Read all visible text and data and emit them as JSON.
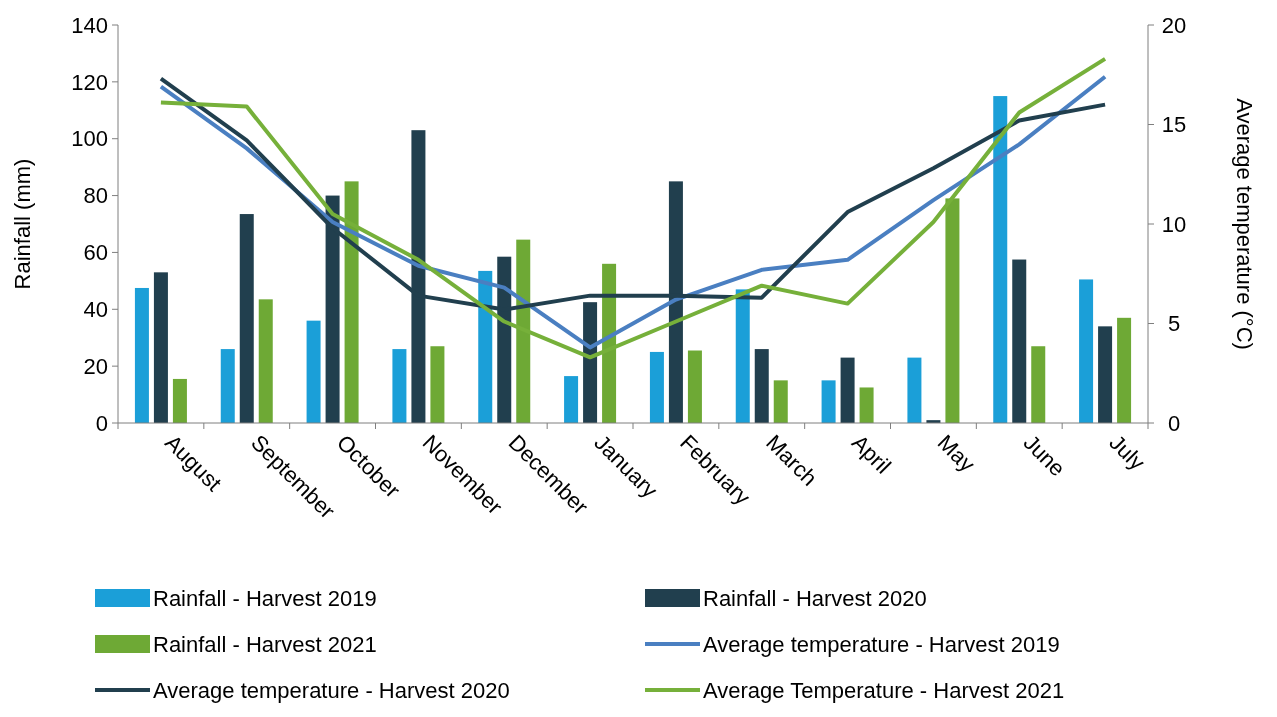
{
  "chart_data": {
    "type": "bar",
    "categories": [
      "August",
      "September",
      "October",
      "November",
      "December",
      "January",
      "February",
      "March",
      "April",
      "May",
      "June",
      "July"
    ],
    "ylabel": "Rainfall (mm)",
    "y2label": "Average temperature (°C)",
    "ylim": [
      0,
      140
    ],
    "yticks": [
      0,
      20,
      40,
      60,
      80,
      100,
      120,
      140
    ],
    "y2lim": [
      0,
      20
    ],
    "y2ticks": [
      0,
      5,
      10,
      15,
      20
    ],
    "grid": false,
    "legend": "bottom",
    "series": [
      {
        "name": "Rainfall - Harvest 2019",
        "color": "#1b9fd8",
        "values": [
          47.5,
          26,
          36,
          26,
          53.5,
          16.5,
          25,
          47,
          15,
          23,
          115,
          50.5
        ]
      },
      {
        "name": "Rainfall - Harvest 2020",
        "color": "#213f4e",
        "values": [
          53,
          73.5,
          80,
          103,
          58.5,
          42.5,
          85,
          26,
          23,
          1,
          57.5,
          34
        ]
      },
      {
        "name": "Rainfall - Harvest 2021",
        "color": "#6ea935",
        "values": [
          15.5,
          43.5,
          85,
          27,
          64.5,
          56,
          25.5,
          15,
          12.5,
          79,
          27,
          37
        ]
      },
      {
        "name": "Average temperature - Harvest 2019",
        "type": "line",
        "axis": "y2",
        "color": "#4a7fc1",
        "values": [
          16.9,
          13.8,
          10.1,
          7.9,
          6.8,
          3.8,
          6.2,
          7.7,
          8.2,
          11.2,
          14,
          17.4
        ]
      },
      {
        "name": "Average temperature - Harvest 2020",
        "type": "line",
        "axis": "y2",
        "color": "#213f4e",
        "values": [
          17.3,
          14.2,
          9.8,
          6.4,
          5.7,
          6.4,
          6.4,
          6.3,
          10.6,
          12.8,
          15.2,
          16
        ]
      },
      {
        "name": "Average Temperature - Harvest 2021",
        "type": "line",
        "axis": "y2",
        "color": "#76b03a",
        "values": [
          16.1,
          15.9,
          10.5,
          8.2,
          5.1,
          3.3,
          5.1,
          6.9,
          6,
          10.1,
          15.6,
          18.3
        ]
      }
    ]
  }
}
